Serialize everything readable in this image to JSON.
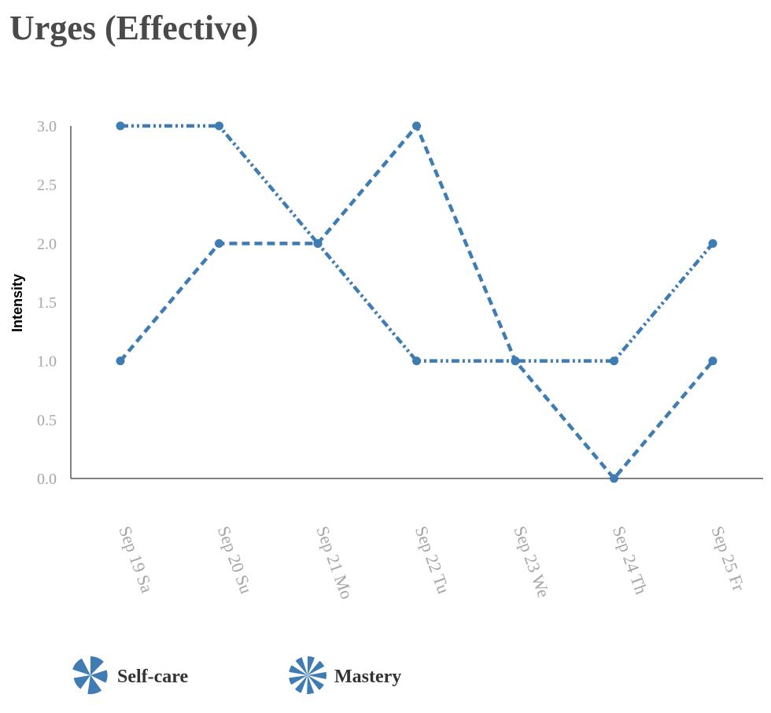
{
  "chart_data": {
    "type": "line",
    "title": "Urges (Effective)",
    "xlabel": "",
    "ylabel": "Intensity",
    "categories": [
      "Sep 19 Sa",
      "Sep 20 Su",
      "Sep 21 Mo",
      "Sep 22 Tu",
      "Sep 23 We",
      "Sep 24 Th",
      "Sep 25 Fr"
    ],
    "ylim": [
      0,
      3
    ],
    "yticks": [
      "0.0",
      "0.5",
      "1.0",
      "1.5",
      "2.0",
      "2.5",
      "3.0"
    ],
    "grid": false,
    "legend_position": "bottom-left",
    "series": [
      {
        "name": "Self-care",
        "values": [
          1,
          2,
          2,
          3,
          1,
          0,
          1
        ],
        "color": "#3f7cb3",
        "dash": "dashed",
        "icon": "pinwheel-icon"
      },
      {
        "name": "Mastery",
        "values": [
          3,
          3,
          2,
          1,
          1,
          1,
          2
        ],
        "color": "#3f7cb3",
        "dash": "dash-dot-dot",
        "icon": "pinwheel-striped-icon"
      }
    ]
  }
}
